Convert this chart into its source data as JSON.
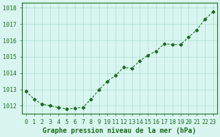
{
  "x": [
    0,
    1,
    2,
    3,
    4,
    5,
    6,
    7,
    8,
    9,
    10,
    11,
    12,
    13,
    14,
    15,
    16,
    17,
    18,
    19,
    20,
    21,
    22,
    23
  ],
  "y": [
    1012.9,
    1012.4,
    1012.1,
    1012.0,
    1011.9,
    1011.8,
    1011.85,
    1011.9,
    1012.4,
    1013.0,
    1013.5,
    1013.85,
    1014.35,
    1014.3,
    1014.75,
    1015.1,
    1015.35,
    1015.8,
    1015.75,
    1015.75,
    1016.2,
    1016.65,
    1017.3,
    1017.75
  ],
  "line_color": "#1a6b1a",
  "marker_color": "#1a6b1a",
  "bg_color": "#d8f5f0",
  "grid_color": "#aaddcc",
  "title": "Graphe pression niveau de la mer (hPa)",
  "ylabel_ticks": [
    1012,
    1013,
    1014,
    1015,
    1016,
    1017,
    1018
  ],
  "xlim": [
    -0.5,
    23.5
  ],
  "ylim": [
    1011.5,
    1018.3
  ],
  "title_color": "#1a6b1a",
  "title_fontsize": 7,
  "tick_fontsize": 6
}
